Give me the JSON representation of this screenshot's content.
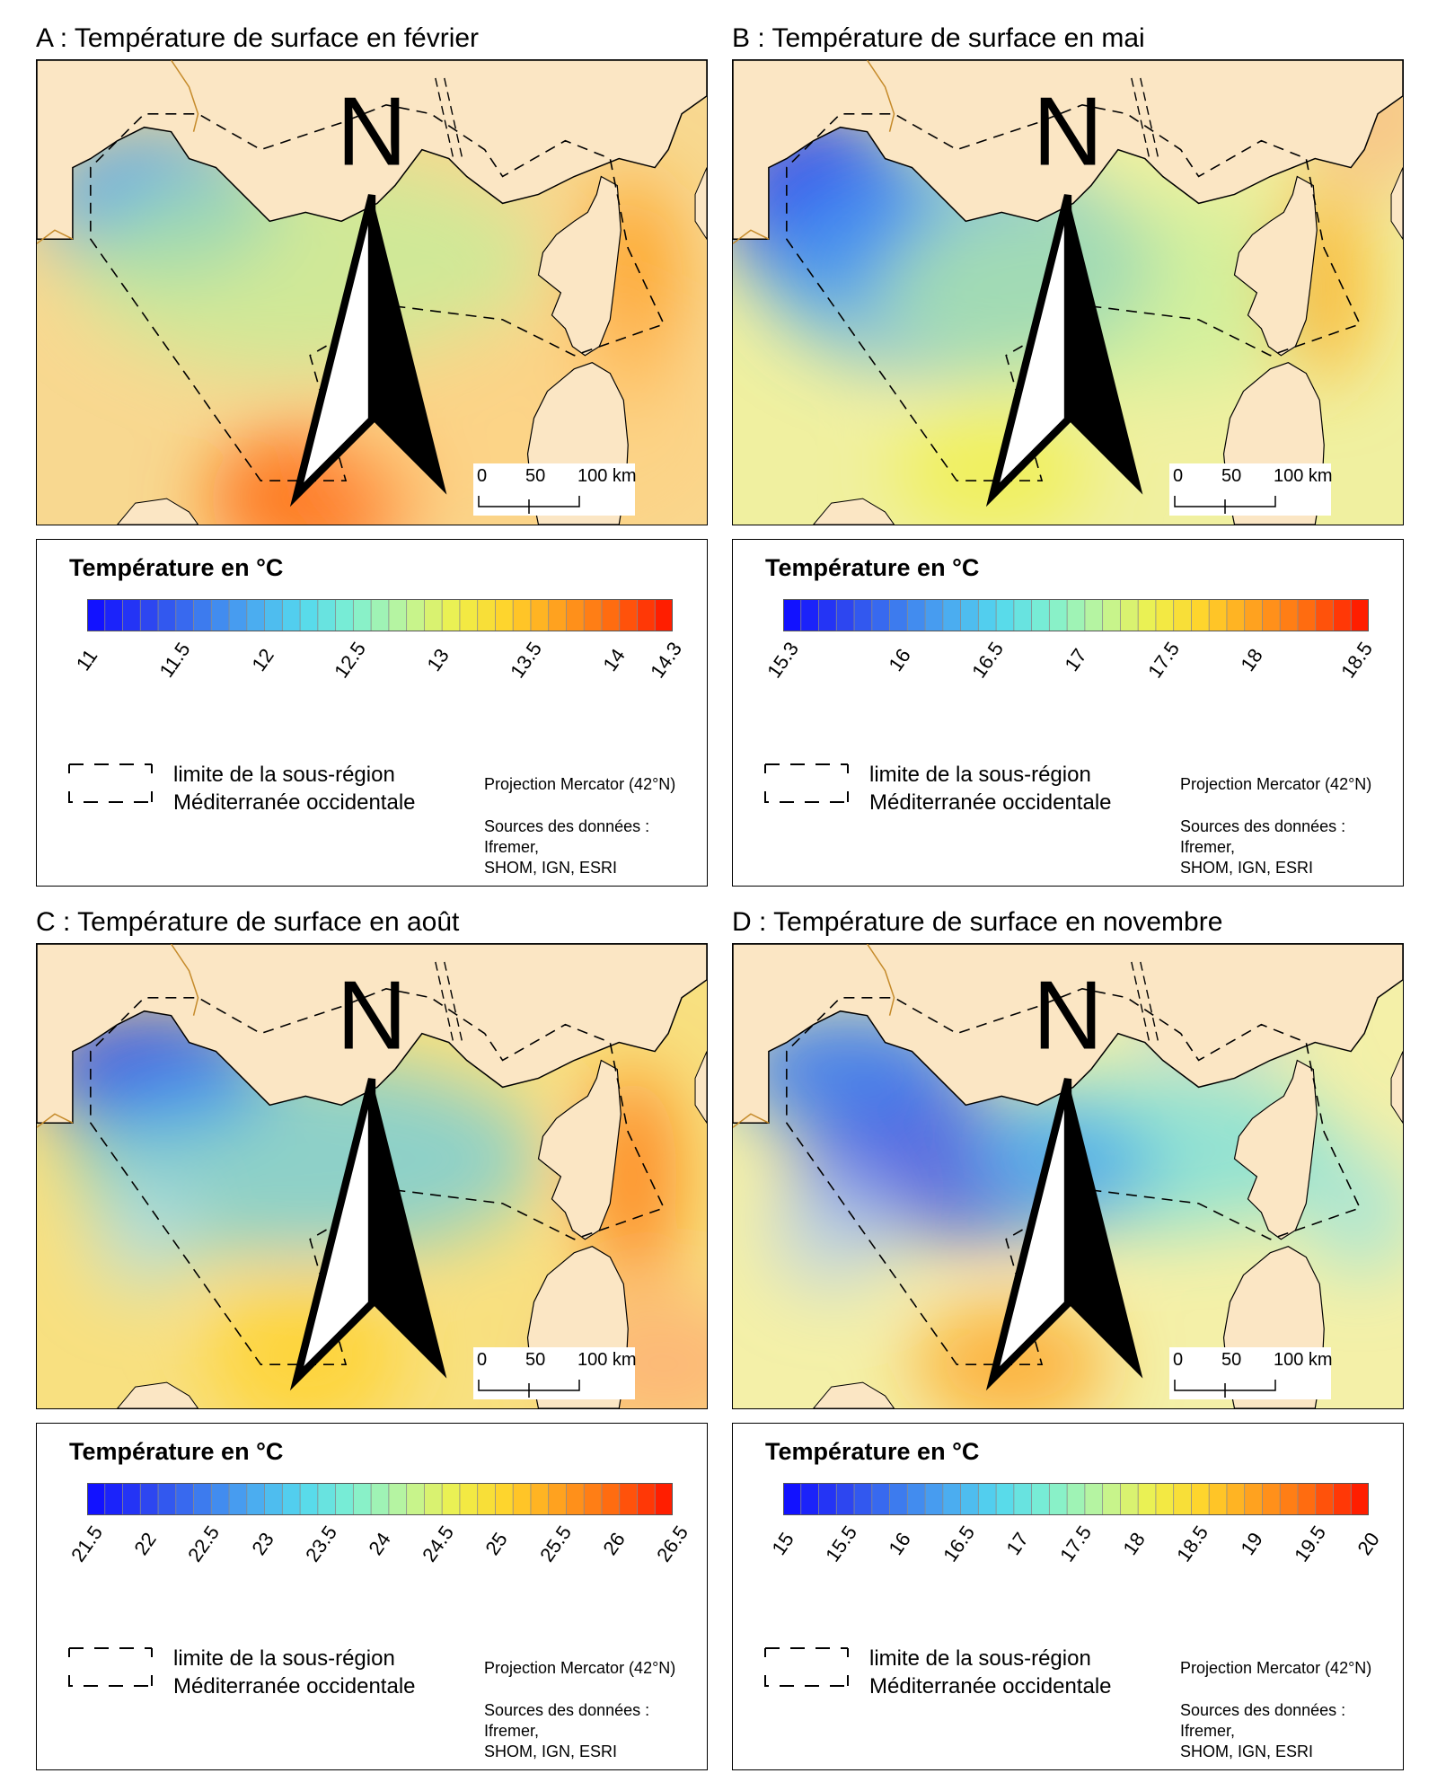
{
  "panels": [
    {
      "id": "A",
      "title": "A : Température de surface en février",
      "legend_title": "Température en °C",
      "ticks": [
        "11",
        "11.5",
        "12",
        "12.5",
        "13",
        "13.5",
        "14",
        "14.3"
      ],
      "tick_pos": [
        0.0,
        0.15,
        0.3,
        0.45,
        0.6,
        0.75,
        0.9,
        0.99
      ],
      "ramp_colors": [
        "#1212ff",
        "#2c44f0",
        "#3c78ee",
        "#4aa8f0",
        "#54d8ee",
        "#7ff0d0",
        "#bff59a",
        "#f0f04a",
        "#ffd22a",
        "#ff9f1e",
        "#ff6a10",
        "#ff1e00"
      ],
      "scale_labels": [
        "0",
        "50",
        "100 km"
      ],
      "north": "N",
      "boundary_label_1": "limite de la sous-région",
      "boundary_label_2": "Méditerranée occidentale",
      "projection": "Projection Mercator (42°N)",
      "sources_1": "Sources des données :",
      "sources_2": "Ifremer,",
      "sources_3": "SHOM, IGN, ESRI"
    },
    {
      "id": "B",
      "title": "B : Température de surface en mai",
      "legend_title": "Température en °C",
      "ticks": [
        "15.3",
        "16",
        "16.5",
        "17",
        "17.5",
        "18",
        "18.5"
      ],
      "tick_pos": [
        0.0,
        0.2,
        0.35,
        0.5,
        0.65,
        0.8,
        0.98
      ],
      "ramp_colors": [
        "#1212ff",
        "#2c44f0",
        "#3c78ee",
        "#4aa8f0",
        "#54d8ee",
        "#7ff0d0",
        "#bff59a",
        "#f0f04a",
        "#ffd22a",
        "#ff9f1e",
        "#ff6a10",
        "#ff1e00"
      ],
      "scale_labels": [
        "0",
        "50",
        "100 km"
      ],
      "north": "N",
      "boundary_label_1": "limite de la sous-région",
      "boundary_label_2": "Méditerranée occidentale",
      "projection": "Projection Mercator (42°N)",
      "sources_1": "Sources des données :",
      "sources_2": "Ifremer,",
      "sources_3": "SHOM, IGN, ESRI"
    },
    {
      "id": "C",
      "title": "C : Température de surface en août",
      "legend_title": "Température en °C",
      "ticks": [
        "21.5",
        "22",
        "22.5",
        "23",
        "23.5",
        "24",
        "24.5",
        "25",
        "25.5",
        "26",
        "26.5"
      ],
      "tick_pos": [
        0.0,
        0.1,
        0.2,
        0.3,
        0.4,
        0.5,
        0.6,
        0.7,
        0.8,
        0.9,
        1.0
      ],
      "ramp_colors": [
        "#1212ff",
        "#2c44f0",
        "#3c78ee",
        "#4aa8f0",
        "#54d8ee",
        "#7ff0d0",
        "#bff59a",
        "#f0f04a",
        "#ffd22a",
        "#ff9f1e",
        "#ff6a10",
        "#ff1e00"
      ],
      "scale_labels": [
        "0",
        "50",
        "100 km"
      ],
      "north": "N",
      "boundary_label_1": "limite de la sous-région",
      "boundary_label_2": "Méditerranée occidentale",
      "projection": "Projection Mercator (42°N)",
      "sources_1": "Sources des données :",
      "sources_2": "Ifremer,",
      "sources_3": "SHOM, IGN, ESRI"
    },
    {
      "id": "D",
      "title": "D : Température de surface en novembre",
      "legend_title": "Température en °C",
      "ticks": [
        "15",
        "15.5",
        "16",
        "16.5",
        "17",
        "17.5",
        "18",
        "18.5",
        "19",
        "19.5",
        "20"
      ],
      "tick_pos": [
        0.0,
        0.1,
        0.2,
        0.3,
        0.4,
        0.5,
        0.6,
        0.7,
        0.8,
        0.9,
        1.0
      ],
      "ramp_colors": [
        "#1212ff",
        "#2c44f0",
        "#3c78ee",
        "#4aa8f0",
        "#54d8ee",
        "#7ff0d0",
        "#bff59a",
        "#f0f04a",
        "#ffd22a",
        "#ff9f1e",
        "#ff6a10",
        "#ff1e00"
      ],
      "scale_labels": [
        "0",
        "50",
        "100 km"
      ],
      "north": "N",
      "boundary_label_1": "limite de la sous-région",
      "boundary_label_2": "Méditerranée occidentale",
      "projection": "Projection Mercator (42°N)",
      "sources_1": "Sources des données :",
      "sources_2": "Ifremer,",
      "sources_3": "SHOM, IGN, ESRI"
    }
  ],
  "colors": {
    "land": "#fbe6c4",
    "coast": "#000000",
    "border": "#c58a2a"
  },
  "icons": {
    "north_arrow": "north-arrow-icon"
  }
}
